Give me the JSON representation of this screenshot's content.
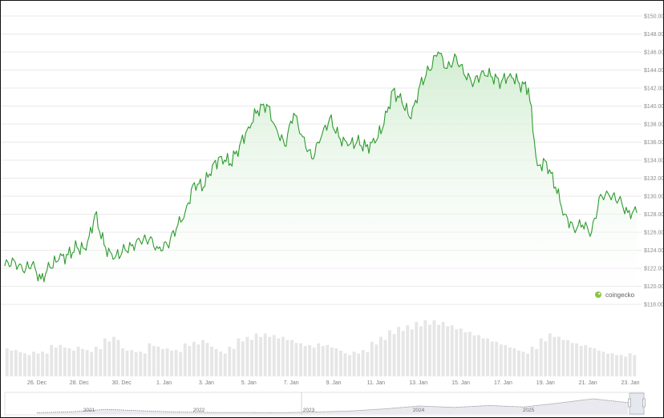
{
  "colors": {
    "line": "#2e9b2e",
    "area_top": "#d6f0d6",
    "grid": "#e9e9e9",
    "volume": "#e6e6e6",
    "navigator_line": "#8a8a8a",
    "navigator_area": "#e9e9ef"
  },
  "watermark": {
    "text": "coingecko",
    "icon": "coingecko-logo-icon"
  },
  "chart_data": {
    "type": "area",
    "grid": true,
    "legend": "none",
    "ylim": [
      118,
      150
    ],
    "y_ticks": [
      "$150.00",
      "$148.00",
      "$146.00",
      "$144.00",
      "$142.00",
      "$140.00",
      "$138.00",
      "$136.00",
      "$134.00",
      "$132.00",
      "$130.00",
      "$128.00",
      "$126.00",
      "$124.00",
      "$122.00",
      "$120.00",
      "$118.00"
    ],
    "x_ticks": [
      "26. Dec",
      "28. Dec",
      "30. Dec",
      "1. Jan",
      "3. Jan",
      "5. Jan",
      "7. Jan",
      "9. Jan",
      "11. Jan",
      "13. Jan",
      "15. Jan",
      "17. Jan",
      "19. Jan",
      "21. Jan",
      "23. Jan"
    ],
    "x": [
      "25. Dec",
      "25. Dec",
      "26. Dec",
      "26. Dec",
      "26. Dec",
      "27. Dec",
      "27. Dec",
      "28. Dec",
      "28. Dec",
      "29. Dec",
      "29. Dec",
      "29. Dec",
      "30. Dec",
      "30. Dec",
      "31. Dec",
      "31. Dec",
      "1. Jan",
      "1. Jan",
      "1. Jan",
      "2. Jan",
      "2. Jan",
      "3. Jan",
      "3. Jan",
      "4. Jan",
      "4. Jan",
      "5. Jan",
      "5. Jan",
      "6. Jan",
      "6. Jan",
      "7. Jan",
      "7. Jan",
      "7. Jan",
      "8. Jan",
      "8. Jan",
      "9. Jan",
      "9. Jan",
      "9. Jan",
      "10. Jan",
      "10. Jan",
      "11. Jan",
      "11. Jan",
      "12. Jan",
      "12. Jan",
      "12. Jan",
      "13. Jan",
      "13. Jan",
      "14. Jan",
      "14. Jan",
      "15. Jan",
      "15. Jan",
      "15. Jan",
      "16. Jan",
      "16. Jan",
      "17. Jan",
      "17. Jan",
      "17. Jan",
      "18. Jan",
      "18. Jan",
      "19. Jan",
      "19. Jan",
      "19. Jan",
      "20. Jan",
      "20. Jan",
      "21. Jan",
      "21. Jan",
      "21. Jan",
      "22. Jan",
      "22. Jan",
      "23. Jan",
      "23. Jan",
      "23. Jan"
    ],
    "series": [
      {
        "values": [
          122.3,
          122.9,
          121.7,
          122.4,
          120.8,
          122.1,
          123.0,
          123.5,
          124.3,
          124.0,
          128.0,
          124.6,
          123.0,
          123.8,
          124.5,
          125.0,
          125.2,
          124.2,
          124.6,
          126.4,
          128.3,
          131.5,
          131.0,
          133.4,
          134.4,
          133.6,
          135.6,
          137.7,
          139.5,
          140.2,
          137.7,
          135.6,
          139.2,
          136.6,
          134.2,
          136.4,
          138.7,
          136.6,
          135.6,
          136.0,
          135.5,
          135.9,
          138.0,
          141.8,
          140.4,
          138.6,
          142.4,
          144.0,
          146.0,
          144.2,
          145.5,
          143.3,
          142.7,
          143.9,
          143.2,
          142.7,
          143.6,
          142.5,
          142.0,
          133.4,
          133.8,
          131.0,
          128.0,
          126.5,
          126.8,
          126.0,
          130.2,
          130.0,
          129.6,
          128.2,
          128.2
        ]
      }
    ],
    "volume": [
      34,
      32,
      28,
      30,
      30,
      38,
      38,
      34,
      36,
      32,
      36,
      46,
      48,
      34,
      32,
      30,
      40,
      36,
      34,
      32,
      40,
      42,
      44,
      36,
      30,
      36,
      46,
      48,
      52,
      52,
      50,
      48,
      44,
      40,
      38,
      40,
      38,
      34,
      28,
      30,
      32,
      42,
      48,
      56,
      60,
      62,
      66,
      68,
      68,
      66,
      62,
      58,
      54,
      50,
      46,
      42,
      38,
      34,
      30,
      36,
      46,
      52,
      48,
      44,
      40,
      38,
      34,
      30,
      28,
      26,
      28
    ],
    "navigator": {
      "years": [
        "2021",
        "2022",
        "2023",
        "2024",
        "2025"
      ],
      "values": [
        0.2,
        0.6,
        1.6,
        1.0,
        0.5,
        0.3,
        0.3,
        0.2,
        0.5,
        0.9,
        1.8,
        3.0,
        2.4,
        3.2,
        2.6,
        4.2,
        6.0,
        4.4
      ]
    }
  }
}
